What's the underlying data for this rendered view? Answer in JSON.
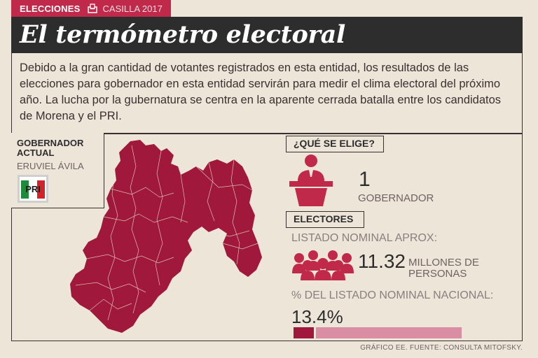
{
  "header": {
    "section": "ELECCIONES",
    "subsection": "CASILLA 2017",
    "ballot_icon": "ballot-box-icon"
  },
  "title": "El termómetro electoral",
  "intro": "Debido a la gran cantidad de votantes registrados en esta entidad, los resultados de las elecciones para gobernador en esta entidad servirán para medir el clima electoral del próximo año. La lucha por la gubernatura se centra en la aparente cerrada batalla entre los candidatos de Morena y el PRI.",
  "governor": {
    "title": "GOBERNADOR ACTUAL",
    "name": "ERUVIEL ÁVILA",
    "party_logo_text": "PRI"
  },
  "election": {
    "question": "¿QUÉ SE ELIGE?",
    "count": "1",
    "office": "GOBERNADOR",
    "icon": "podium-icon"
  },
  "voters": {
    "label": "ELECTORES",
    "nominal_label": "LISTADO NOMINAL APROX:",
    "nominal_value": "11.32",
    "nominal_unit": "MILLONES DE PERSONAS",
    "pct_label": "% DEL LISTADO NOMINAL NACIONAL:",
    "pct_value": "13.4%",
    "pct_fraction": 0.134,
    "icon": "people-group-icon"
  },
  "source": "GRÁFICO EE. FUENTE: CONSULTA MITOFSKY.",
  "colors": {
    "accent": "#c0294a",
    "map": "#a0183b",
    "bar_bg": "#d98ea3",
    "background": "#eee5d9",
    "dark": "#2d2d2d"
  }
}
